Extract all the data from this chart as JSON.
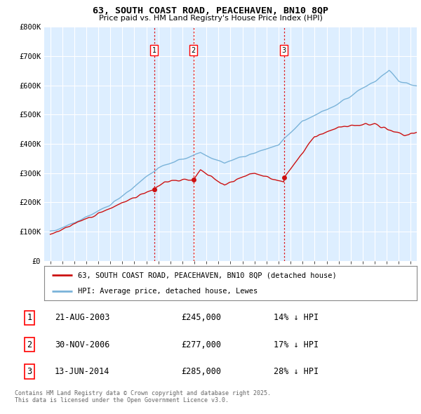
{
  "title": "63, SOUTH COAST ROAD, PEACEHAVEN, BN10 8QP",
  "subtitle": "Price paid vs. HM Land Registry's House Price Index (HPI)",
  "ylim": [
    0,
    800000
  ],
  "yticks": [
    0,
    100000,
    200000,
    300000,
    400000,
    500000,
    600000,
    700000,
    800000
  ],
  "ytick_labels": [
    "£0",
    "£100K",
    "£200K",
    "£300K",
    "£400K",
    "£500K",
    "£600K",
    "£700K",
    "£800K"
  ],
  "background_color": "#ffffff",
  "plot_bg_color": "#ddeeff",
  "grid_color": "#ffffff",
  "hpi_color": "#7ab3d9",
  "price_color": "#cc1111",
  "vline_color": "#dd0000",
  "sale_dates": [
    2003.64,
    2006.92,
    2014.45
  ],
  "sale_prices": [
    245000,
    277000,
    285000
  ],
  "sale_labels": [
    "1",
    "2",
    "3"
  ],
  "legend_entries": [
    "63, SOUTH COAST ROAD, PEACEHAVEN, BN10 8QP (detached house)",
    "HPI: Average price, detached house, Lewes"
  ],
  "table_rows": [
    [
      "1",
      "21-AUG-2003",
      "£245,000",
      "14% ↓ HPI"
    ],
    [
      "2",
      "30-NOV-2006",
      "£277,000",
      "17% ↓ HPI"
    ],
    [
      "3",
      "13-JUN-2014",
      "£285,000",
      "28% ↓ HPI"
    ]
  ],
  "footnote": "Contains HM Land Registry data © Crown copyright and database right 2025.\nThis data is licensed under the Open Government Licence v3.0.",
  "xmin": 1994.5,
  "xmax": 2025.5
}
